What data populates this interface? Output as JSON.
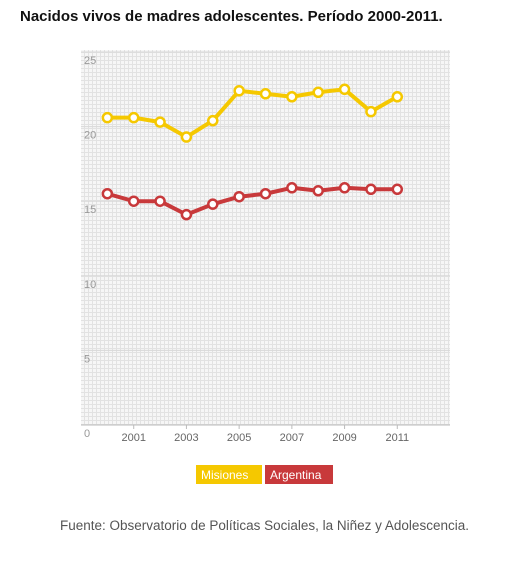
{
  "chart_data": {
    "type": "line",
    "title": "Nacidos vivos de madres adolescentes. Período 2000-2011.",
    "x": [
      2000,
      2001,
      2002,
      2003,
      2004,
      2005,
      2006,
      2007,
      2008,
      2009,
      2010,
      2011
    ],
    "xlim": [
      1999,
      2013
    ],
    "xticks": [
      2001,
      2003,
      2005,
      2007,
      2009,
      2011
    ],
    "ylim": [
      0,
      25
    ],
    "yticks": [
      0,
      5,
      10,
      15,
      20,
      25
    ],
    "grid": true,
    "legend": "bottom",
    "series": [
      {
        "name": "Misiones",
        "color": "#f5c800",
        "values": [
          20.6,
          20.6,
          20.3,
          19.3,
          20.4,
          22.4,
          22.2,
          22.0,
          22.3,
          22.5,
          21.0,
          22.0
        ]
      },
      {
        "name": "Argentina",
        "color": "#c8393b",
        "values": [
          15.5,
          15.0,
          15.0,
          14.1,
          14.8,
          15.3,
          15.5,
          15.9,
          15.7,
          15.9,
          15.8,
          15.8
        ]
      }
    ],
    "source": "Fuente: Observatorio de Políticas Sociales, la Niñez y Adolescencia."
  }
}
